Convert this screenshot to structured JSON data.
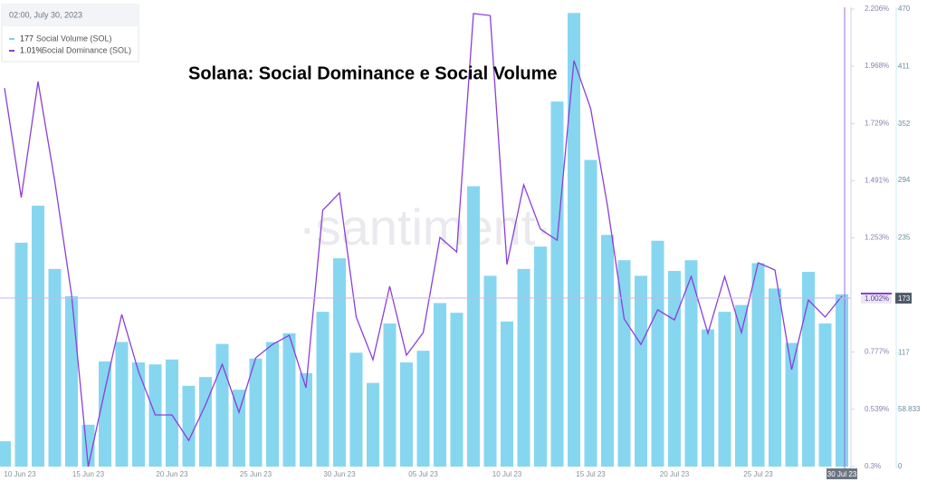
{
  "chart_data": {
    "type": "bar-line",
    "title": "Solana: Social Dominance e Social Volume",
    "watermark": "·santiment·",
    "tooltip": {
      "date": "02:00, July 30, 2023",
      "entries": [
        {
          "value": "177",
          "name": "Social Volume (SOL)",
          "color": "#7fd3ee"
        },
        {
          "value": "1.01%",
          "name": "Social Dominance (SOL)",
          "color": "#8b3fd9"
        }
      ]
    },
    "categories": [
      "10 Jun 23",
      null,
      null,
      null,
      null,
      "15 Jun 23",
      null,
      null,
      null,
      null,
      "20 Jun 23",
      null,
      null,
      null,
      null,
      "25 Jun 23",
      null,
      null,
      null,
      null,
      "30 Jun 23",
      null,
      null,
      null,
      null,
      "05 Jul 23",
      null,
      null,
      null,
      null,
      "10 Jul 23",
      null,
      null,
      null,
      null,
      "15 Jul 23",
      null,
      null,
      null,
      null,
      "20 Jul 23",
      null,
      null,
      null,
      null,
      "25 Jul 23",
      null,
      null,
      null,
      null,
      "30 Jul 23"
    ],
    "series": [
      {
        "name": "Social Volume (SOL)",
        "kind": "bar",
        "axis": "y2",
        "color": "#86d6f0",
        "values": [
          26,
          230,
          268,
          203,
          175,
          43,
          108,
          128,
          107,
          105,
          110,
          83,
          92,
          126,
          79,
          111,
          128,
          137,
          96,
          159,
          214,
          117,
          86,
          147,
          107,
          119,
          168,
          158,
          288,
          196,
          149,
          203,
          226,
          375,
          466,
          315,
          238,
          212,
          196,
          232,
          201,
          212,
          141,
          159,
          166,
          209,
          183,
          127,
          200,
          147,
          177
        ]
      },
      {
        "name": "Social Dominance (SOL)",
        "kind": "line",
        "axis": "y",
        "color": "#8b3fd9",
        "values": [
          1.877,
          1.421,
          1.904,
          1.489,
          1.017,
          0.3,
          0.621,
          0.934,
          0.696,
          0.515,
          0.515,
          0.409,
          0.557,
          0.726,
          0.526,
          0.753,
          0.809,
          0.847,
          0.628,
          1.368,
          1.44,
          0.923,
          0.745,
          1.051,
          0.764,
          0.858,
          1.255,
          1.194,
          2.187,
          2.179,
          1.142,
          1.474,
          1.289,
          1.243,
          1.991,
          1.791,
          1.387,
          0.915,
          0.809,
          0.953,
          0.911,
          1.092,
          0.855,
          1.092,
          0.858,
          1.149,
          1.119,
          0.704,
          0.994,
          0.923,
          1.01
        ]
      }
    ],
    "ylim": [
      0.3,
      2.206
    ],
    "yticks": [
      {
        "value": 2.206,
        "label": "2.206%"
      },
      {
        "value": 1.968,
        "label": "1.968%"
      },
      {
        "value": 1.729,
        "label": "1.729%"
      },
      {
        "value": 1.491,
        "label": "1.491%"
      },
      {
        "value": 1.253,
        "label": "1.253%"
      },
      {
        "value": 0.777,
        "label": "0.777%"
      },
      {
        "value": 0.539,
        "label": "0.539%"
      },
      {
        "value": 0.3,
        "label": "0.3%"
      }
    ],
    "y2lim": [
      0,
      470
    ],
    "y2ticks": [
      470,
      411,
      352,
      294,
      235,
      117,
      58.833,
      0
    ],
    "y_marker": {
      "value": 1.002,
      "label": "1.002%"
    },
    "y2_marker": 173
  }
}
